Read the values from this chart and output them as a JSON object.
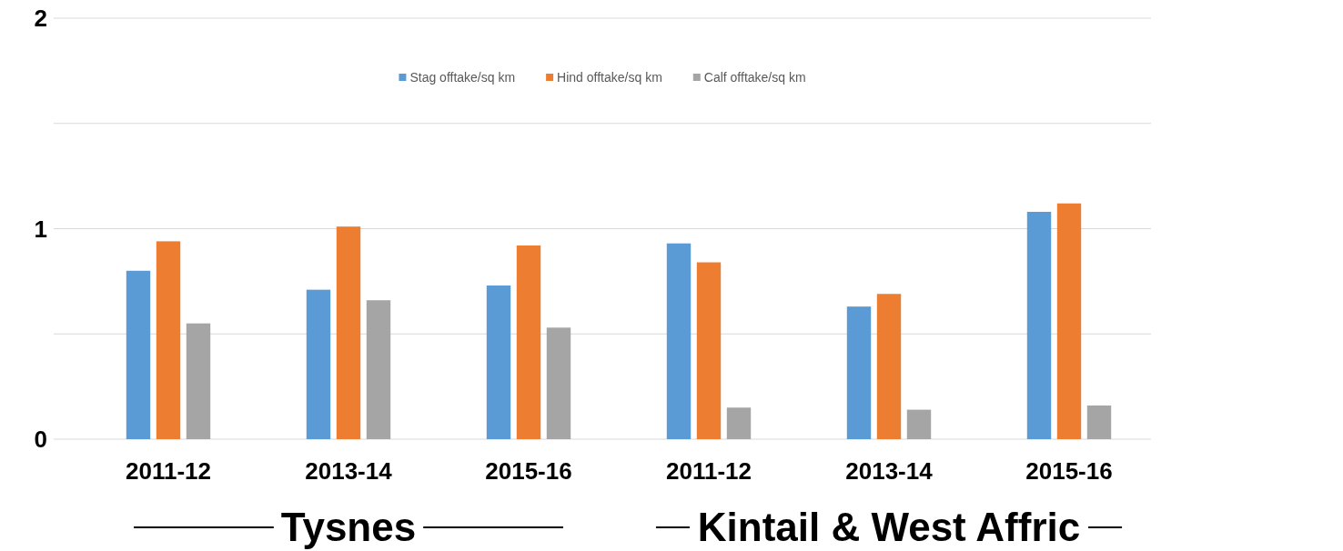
{
  "chart_data": {
    "type": "bar",
    "categories": [
      "2011-12",
      "2013-14",
      "2015-16",
      "2011-12",
      "2013-14",
      "2015-16"
    ],
    "series": [
      {
        "name": "Stag offtake/sq km",
        "color": "#5b9bd5",
        "values": [
          0.8,
          0.71,
          0.73,
          0.93,
          0.63,
          1.08
        ]
      },
      {
        "name": "Hind offtake/sq km",
        "color": "#ed7d31",
        "values": [
          0.94,
          1.01,
          0.92,
          0.84,
          0.69,
          1.12
        ]
      },
      {
        "name": "Calf offtake/sq km",
        "color": "#a5a5a5",
        "values": [
          0.55,
          0.66,
          0.53,
          0.15,
          0.14,
          0.16
        ]
      }
    ],
    "ylim": [
      0,
      2
    ],
    "yticks": [
      0,
      {
        "value": 0.5,
        "label": null
      },
      1,
      {
        "value": 1.5,
        "label": null
      },
      2
    ],
    "grid": "y",
    "legend": "top",
    "annotations": [
      "Tysnes",
      "Kintail & West Affric"
    ]
  }
}
